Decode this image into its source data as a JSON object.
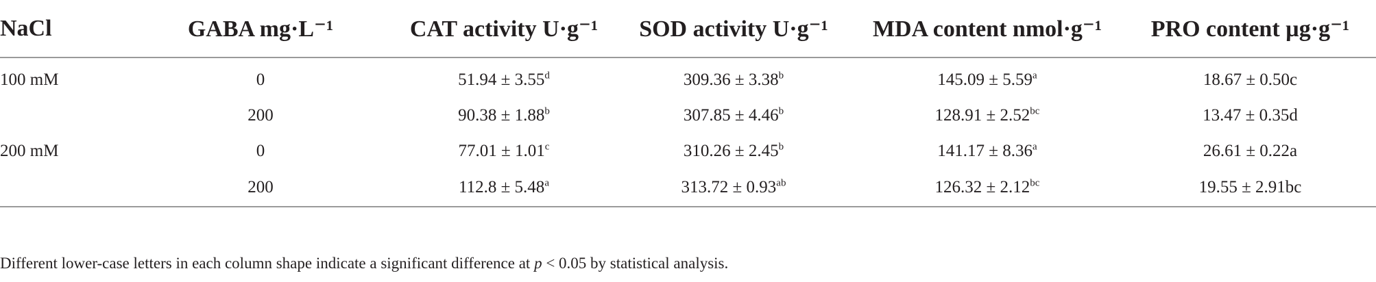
{
  "table": {
    "headers": [
      "NaCl",
      "GABA mg·L⁻¹",
      "CAT activity U·g⁻¹",
      "SOD activity U·g⁻¹",
      "MDA content nmol·g⁻¹",
      "PRO content µg·g⁻¹"
    ],
    "rows": [
      {
        "nacl": "100 mM",
        "gaba": "0",
        "cat": {
          "value": "51.94 ± 3.55",
          "sig": "d"
        },
        "sod": {
          "value": "309.36 ± 3.38",
          "sig": "b"
        },
        "mda": {
          "value": "145.09 ± 5.59",
          "sig": "a"
        },
        "pro": {
          "value": "18.67 ± 0.50c",
          "sig": ""
        }
      },
      {
        "nacl": "",
        "gaba": "200",
        "cat": {
          "value": "90.38 ± 1.88",
          "sig": "b"
        },
        "sod": {
          "value": "307.85 ± 4.46",
          "sig": "b"
        },
        "mda": {
          "value": "128.91 ± 2.52",
          "sig": "bc"
        },
        "pro": {
          "value": "13.47 ± 0.35d",
          "sig": ""
        }
      },
      {
        "nacl": "200 mM",
        "gaba": "0",
        "cat": {
          "value": "77.01 ± 1.01",
          "sig": "c"
        },
        "sod": {
          "value": "310.26 ± 2.45",
          "sig": "b"
        },
        "mda": {
          "value": "141.17 ± 8.36",
          "sig": "a"
        },
        "pro": {
          "value": "26.61 ± 0.22a",
          "sig": ""
        }
      },
      {
        "nacl": "",
        "gaba": "200",
        "cat": {
          "value": "112.8 ± 5.48",
          "sig": "a"
        },
        "sod": {
          "value": "313.72 ± 0.93",
          "sig": "ab"
        },
        "mda": {
          "value": "126.32 ± 2.12",
          "sig": "bc"
        },
        "pro": {
          "value": "19.55 ± 2.91bc",
          "sig": ""
        }
      }
    ]
  },
  "footnote": {
    "before": "Different lower-case letters in each column shape indicate a significant difference at ",
    "p_symbol": "p",
    "after": " < 0.05 by statistical analysis."
  }
}
